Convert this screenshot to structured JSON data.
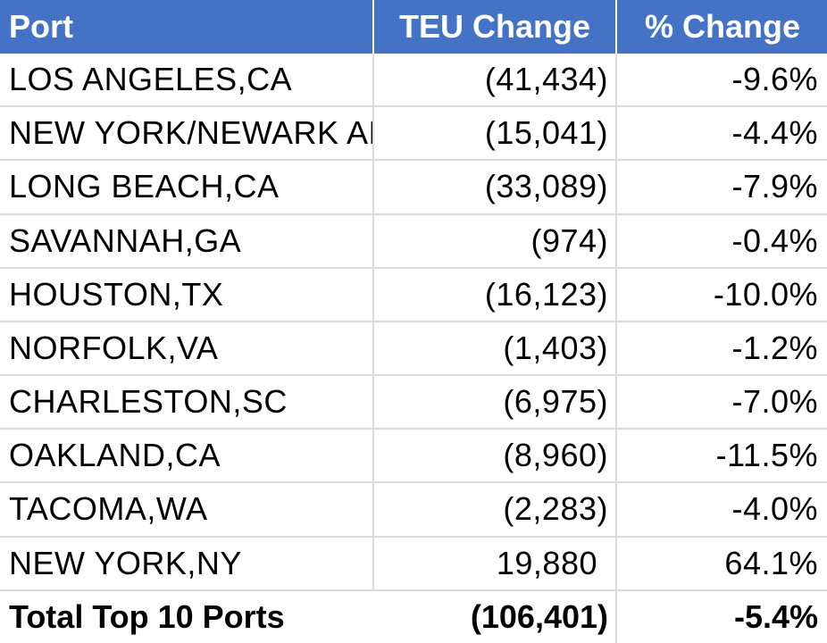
{
  "header": {
    "port": "Port",
    "teu_change": "TEU Change",
    "pct_change": "% Change"
  },
  "rows": [
    {
      "port": "LOS ANGELES,CA",
      "teu_change": "(41,434)",
      "pct_change": "-9.6%"
    },
    {
      "port": "NEW YORK/NEWARK AREA,NJ",
      "teu_change": "(15,041)",
      "pct_change": "-4.4%"
    },
    {
      "port": "LONG BEACH,CA",
      "teu_change": "(33,089)",
      "pct_change": "-7.9%"
    },
    {
      "port": "SAVANNAH,GA",
      "teu_change": "(974)",
      "pct_change": "-0.4%"
    },
    {
      "port": "HOUSTON,TX",
      "teu_change": "(16,123)",
      "pct_change": "-10.0%"
    },
    {
      "port": "NORFOLK,VA",
      "teu_change": "(1,403)",
      "pct_change": "-1.2%"
    },
    {
      "port": "CHARLESTON,SC",
      "teu_change": "(6,975)",
      "pct_change": "-7.0%"
    },
    {
      "port": "OAKLAND,CA",
      "teu_change": "(8,960)",
      "pct_change": "-11.5%"
    },
    {
      "port": "TACOMA,WA",
      "teu_change": "(2,283)",
      "pct_change": "-4.0%"
    },
    {
      "port": "NEW YORK,NY",
      "teu_change": "19,880",
      "pct_change": "64.1%"
    }
  ],
  "total": {
    "port": "Total Top 10 Ports",
    "teu_change": "(106,401)",
    "pct_change": "-5.4%"
  },
  "colors": {
    "header_bg": "#4472c4",
    "header_text": "#ffffff",
    "grid_line": "#dcdcdc"
  }
}
